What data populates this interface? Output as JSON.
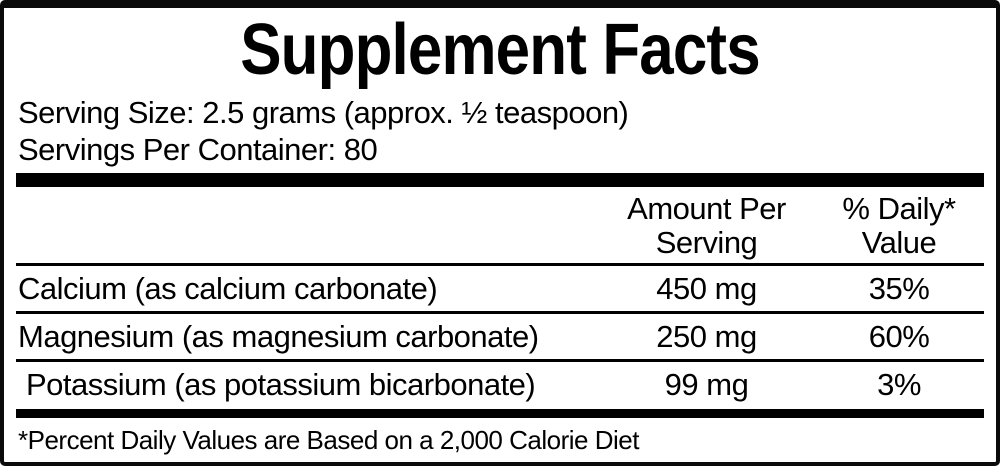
{
  "label": {
    "title": "Supplement Facts",
    "serving": {
      "size_line": "Serving Size: 2.5 grams (approx. ½ teaspoon)",
      "per_container_line": "Servings Per Container: 80"
    },
    "columns": {
      "amount_line1": "Amount Per",
      "amount_line2": "Serving",
      "dv_line1": "% Daily*",
      "dv_line2": "Value"
    },
    "rows": [
      {
        "name": "Calcium (as calcium carbonate)",
        "amount": "450 mg",
        "dv": "35%"
      },
      {
        "name": "Magnesium (as magnesium carbonate)",
        "amount": "250 mg",
        "dv": "60%"
      },
      {
        "name": "Potassium (as potassium bicarbonate)",
        "amount": "99 mg",
        "dv": "3%"
      }
    ],
    "footnote": "*Percent Daily Values are Based on a 2,000 Calorie Diet",
    "colors": {
      "text": "#000000",
      "background": "#ffffff",
      "border": "#000000"
    }
  }
}
